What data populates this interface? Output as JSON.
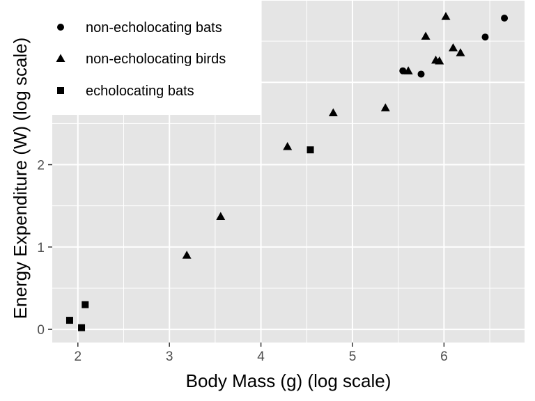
{
  "chart_data": {
    "type": "scatter",
    "xlabel": "Body Mass (g) (log scale)",
    "ylabel": "Energy Expenditure (W) (log scale)",
    "xlim": [
      1.72,
      6.88
    ],
    "ylim": [
      -0.16,
      4.0
    ],
    "xticks": [
      2,
      3,
      4,
      5,
      6
    ],
    "yticks": [
      0,
      1,
      2
    ],
    "grid": true,
    "legend_position": "top-left",
    "series": [
      {
        "name": "non-echolocating bats",
        "marker": "circle",
        "points": [
          {
            "x": 5.55,
            "y": 3.14
          },
          {
            "x": 5.75,
            "y": 3.1
          },
          {
            "x": 6.45,
            "y": 3.55
          },
          {
            "x": 6.66,
            "y": 3.78
          }
        ]
      },
      {
        "name": "non-echolocating birds",
        "marker": "triangle",
        "points": [
          {
            "x": 3.19,
            "y": 0.9
          },
          {
            "x": 3.56,
            "y": 1.37
          },
          {
            "x": 4.29,
            "y": 2.22
          },
          {
            "x": 4.79,
            "y": 2.63
          },
          {
            "x": 5.36,
            "y": 2.69
          },
          {
            "x": 5.61,
            "y": 3.14
          },
          {
            "x": 5.8,
            "y": 3.56
          },
          {
            "x": 5.91,
            "y": 3.27
          },
          {
            "x": 5.95,
            "y": 3.26
          },
          {
            "x": 6.02,
            "y": 3.8
          },
          {
            "x": 6.1,
            "y": 3.42
          },
          {
            "x": 6.18,
            "y": 3.36
          }
        ]
      },
      {
        "name": "echolocating bats",
        "marker": "square",
        "points": [
          {
            "x": 1.91,
            "y": 0.11
          },
          {
            "x": 2.04,
            "y": 0.02
          },
          {
            "x": 2.08,
            "y": 0.3
          },
          {
            "x": 4.54,
            "y": 2.18
          }
        ]
      }
    ]
  },
  "colors": {
    "panel_background": "#e5e5e5",
    "grid": "#ffffff",
    "points": "#000000"
  }
}
